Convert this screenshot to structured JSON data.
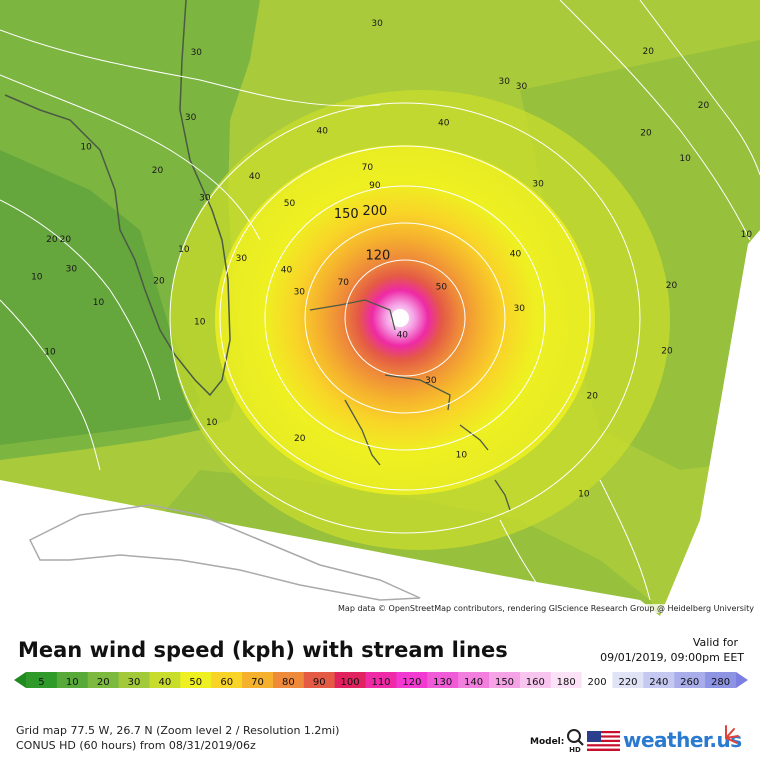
{
  "title": "Mean wind speed (kph) with stream lines",
  "valid": {
    "label": "Valid for",
    "date": "09/01/2019, 09:00pm EET"
  },
  "attribution": "Map data © OpenStreetMap contributors, rendering GIScience Research Group @ Heidelberg University",
  "grid_info": "Grid map 77.5 W, 26.7 N (Zoom level 2 / Resolution 1.2mi)",
  "run_info": "CONUS HD (60 hours) from 08/31/2019/06z",
  "model_label": "Model:",
  "model_badge": "HD",
  "brand": "weather.us",
  "legend": {
    "ticks": [
      "5",
      "10",
      "20",
      "30",
      "40",
      "50",
      "60",
      "70",
      "80",
      "90",
      "100",
      "110",
      "120",
      "130",
      "140",
      "150",
      "160",
      "180",
      "200",
      "220",
      "240",
      "260",
      "280"
    ],
    "colors": [
      "#2f9a2a",
      "#57a93a",
      "#7cb93f",
      "#a2c93a",
      "#c8dc2c",
      "#eef021",
      "#f9d428",
      "#f5b02e",
      "#ee8a3a",
      "#e45a45",
      "#e0235f",
      "#ee2aa6",
      "#f23ad2",
      "#f05cd8",
      "#f27fde",
      "#f5a3e6",
      "#f8c5ee",
      "#fbe2f6",
      "#ffffff",
      "#e0e2f6",
      "#c5c8f0",
      "#a9aeea",
      "#8e94e4"
    ],
    "end_colors": {
      "left": "#1f8a1f",
      "right": "#7c7fe0"
    }
  },
  "map": {
    "colors": {
      "ocean_light": "#a9cb3b",
      "ocean_mid": "#97c03c",
      "land_green": "#7db541",
      "land_dark": "#5fa23c",
      "yellow_green": "#c8dc2c",
      "yellow": "#eef021",
      "coast": "#4b5a44",
      "streamline": "#ffffff",
      "no_data": "#ffffff",
      "cuba_border": "#aaaaaa"
    },
    "contour_labels": [
      {
        "text": "30",
        "lon": -74.97,
        "lat": 30.62
      },
      {
        "text": "20",
        "lon": -67.76,
        "lat": 29.79
      },
      {
        "text": "30",
        "lon": -79.78,
        "lat": 29.76
      },
      {
        "text": "30",
        "lon": -71.59,
        "lat": 28.89
      },
      {
        "text": "30",
        "lon": -71.13,
        "lat": 28.75
      },
      {
        "text": "20",
        "lon": -66.29,
        "lat": 28.18
      },
      {
        "text": "30",
        "lon": -79.93,
        "lat": 27.82
      },
      {
        "text": "40",
        "lon": -73.2,
        "lat": 27.65
      },
      {
        "text": "20",
        "lon": -67.82,
        "lat": 27.35
      },
      {
        "text": "40",
        "lon": -76.43,
        "lat": 27.42
      },
      {
        "text": "10",
        "lon": -82.71,
        "lat": 26.94
      },
      {
        "text": "10",
        "lon": -66.78,
        "lat": 26.59
      },
      {
        "text": "20",
        "lon": -80.81,
        "lat": 26.24
      },
      {
        "text": "70",
        "lon": -75.23,
        "lat": 26.33
      },
      {
        "text": "40",
        "lon": -78.23,
        "lat": 26.05
      },
      {
        "text": "30",
        "lon": -70.69,
        "lat": 25.83
      },
      {
        "text": "90",
        "lon": -75.03,
        "lat": 25.79
      },
      {
        "text": "30",
        "lon": -79.55,
        "lat": 25.41
      },
      {
        "text": "50",
        "lon": -77.3,
        "lat": 25.25
      },
      {
        "text": "150",
        "lon": -75.79,
        "lat": 24.89
      },
      {
        "text": "200",
        "lon": -75.03,
        "lat": 24.98
      },
      {
        "text": "10",
        "lon": -65.15,
        "lat": 24.32
      },
      {
        "text": "20",
        "lon": -83.62,
        "lat": 24.18
      },
      {
        "text": "10",
        "lon": -80.11,
        "lat": 23.88
      },
      {
        "text": "20",
        "lon": -83.26,
        "lat": 24.17
      },
      {
        "text": "40",
        "lon": -71.29,
        "lat": 23.75
      },
      {
        "text": "120",
        "lon": -74.95,
        "lat": 23.65
      },
      {
        "text": "30",
        "lon": -78.58,
        "lat": 23.61
      },
      {
        "text": "10",
        "lon": -84.02,
        "lat": 23.06
      },
      {
        "text": "30",
        "lon": -83.1,
        "lat": 23.3
      },
      {
        "text": "40",
        "lon": -77.38,
        "lat": 23.27
      },
      {
        "text": "20",
        "lon": -80.77,
        "lat": 22.93
      },
      {
        "text": "70",
        "lon": -75.87,
        "lat": 22.89
      },
      {
        "text": "50",
        "lon": -73.26,
        "lat": 22.76
      },
      {
        "text": "30",
        "lon": -77.04,
        "lat": 22.61
      },
      {
        "text": "20",
        "lon": -67.14,
        "lat": 22.81
      },
      {
        "text": "10",
        "lon": -82.38,
        "lat": 22.3
      },
      {
        "text": "10",
        "lon": -79.69,
        "lat": 21.72
      },
      {
        "text": "30",
        "lon": -71.19,
        "lat": 22.12
      },
      {
        "text": "40",
        "lon": -74.3,
        "lat": 21.33
      },
      {
        "text": "10",
        "lon": -83.67,
        "lat": 20.82
      },
      {
        "text": "20",
        "lon": -67.26,
        "lat": 20.85
      },
      {
        "text": "30",
        "lon": -73.54,
        "lat": 19.96
      },
      {
        "text": "20",
        "lon": -69.25,
        "lat": 19.5
      },
      {
        "text": "10",
        "lon": -79.37,
        "lat": 18.72
      },
      {
        "text": "20",
        "lon": -77.03,
        "lat": 18.24
      },
      {
        "text": "10",
        "lon": -72.73,
        "lat": 17.74
      },
      {
        "text": "10",
        "lon": -69.47,
        "lat": 16.58
      }
    ]
  }
}
